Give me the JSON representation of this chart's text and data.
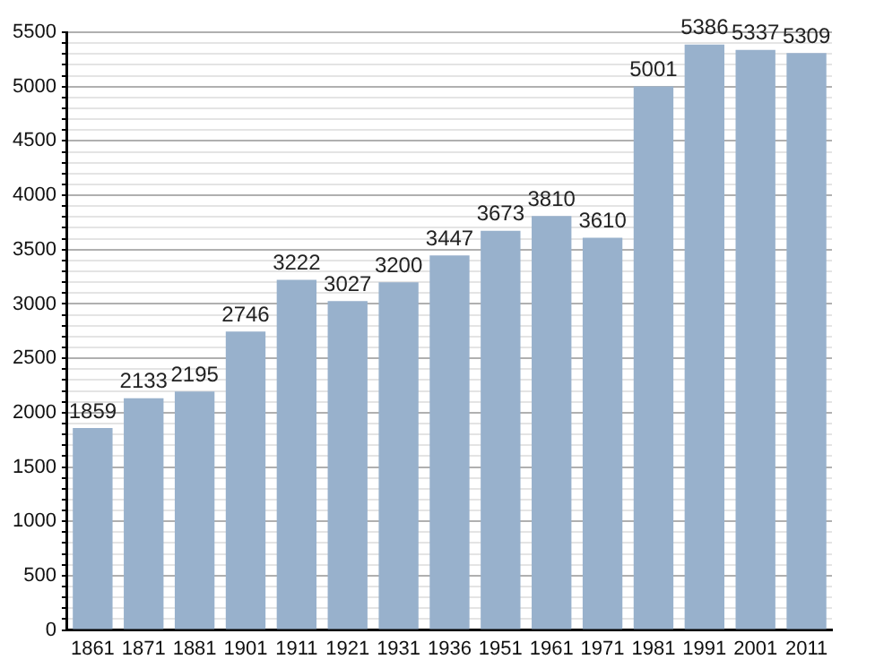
{
  "chart_data": {
    "type": "bar",
    "categories": [
      "1861",
      "1871",
      "1881",
      "1901",
      "1911",
      "1921",
      "1931",
      "1936",
      "1951",
      "1961",
      "1971",
      "1981",
      "1991",
      "2001",
      "2011"
    ],
    "values": [
      1859,
      2133,
      2195,
      2746,
      3222,
      3027,
      3200,
      3447,
      3673,
      3810,
      3610,
      5001,
      5386,
      5337,
      5309
    ],
    "color": "#98b1cc",
    "ylim": [
      0,
      5500
    ],
    "yticks": [
      0,
      {
        "value": 100,
        "label": null
      },
      {
        "value": 200,
        "label": null
      },
      {
        "value": 300,
        "label": null
      },
      {
        "value": 400,
        "label": null
      },
      500,
      {
        "value": 600,
        "label": null
      },
      {
        "value": 700,
        "label": null
      },
      {
        "value": 800,
        "label": null
      },
      {
        "value": 900,
        "label": null
      },
      1000,
      {
        "value": 1100,
        "label": null
      },
      {
        "value": 1200,
        "label": null
      },
      {
        "value": 1300,
        "label": null
      },
      {
        "value": 1400,
        "label": null
      },
      1500,
      {
        "value": 1600,
        "label": null
      },
      {
        "value": 1700,
        "label": null
      },
      {
        "value": 1800,
        "label": null
      },
      {
        "value": 1900,
        "label": null
      },
      2000,
      {
        "value": 2100,
        "label": null
      },
      {
        "value": 2200,
        "label": null
      },
      {
        "value": 2300,
        "label": null
      },
      {
        "value": 2400,
        "label": null
      },
      2500,
      {
        "value": 2600,
        "label": null
      },
      {
        "value": 2700,
        "label": null
      },
      {
        "value": 2800,
        "label": null
      },
      {
        "value": 2900,
        "label": null
      },
      3000,
      {
        "value": 3100,
        "label": null
      },
      {
        "value": 3200,
        "label": null
      },
      {
        "value": 3300,
        "label": null
      },
      {
        "value": 3400,
        "label": null
      },
      3500,
      {
        "value": 3600,
        "label": null
      },
      {
        "value": 3700,
        "label": null
      },
      {
        "value": 3800,
        "label": null
      },
      {
        "value": 3900,
        "label": null
      },
      4000,
      {
        "value": 4100,
        "label": null
      },
      {
        "value": 4200,
        "label": null
      },
      {
        "value": 4300,
        "label": null
      },
      {
        "value": 4400,
        "label": null
      },
      4500,
      {
        "value": 4600,
        "label": null
      },
      {
        "value": 4700,
        "label": null
      },
      {
        "value": 4800,
        "label": null
      },
      {
        "value": 4900,
        "label": null
      },
      5000,
      {
        "value": 5100,
        "label": null
      },
      {
        "value": 5200,
        "label": null
      },
      {
        "value": 5300,
        "label": null
      },
      {
        "value": 5400,
        "label": null
      },
      5500
    ],
    "grid": "y",
    "legend": false,
    "data_labels": true
  }
}
